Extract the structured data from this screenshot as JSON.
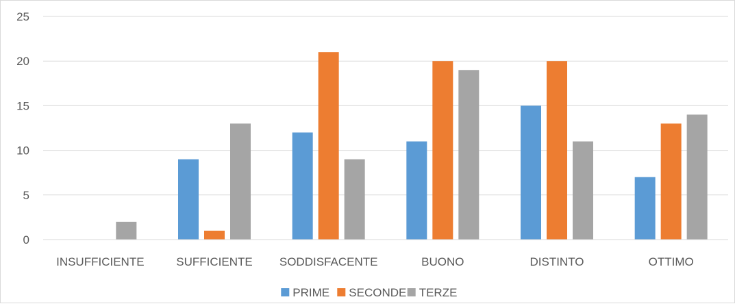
{
  "chart_data": {
    "type": "bar",
    "title": "",
    "xlabel": "",
    "ylabel": "",
    "ylim": [
      0,
      25
    ],
    "yticks": [
      0,
      5,
      10,
      15,
      20,
      25
    ],
    "grid": true,
    "legend_position": "bottom",
    "categories": [
      "INSUFFICIENTE",
      "SUFFICIENTE",
      "SODDISFACENTE",
      "BUONO",
      "DISTINTO",
      "OTTIMO"
    ],
    "series": [
      {
        "name": "PRIME",
        "color": "#5b9bd5",
        "values": [
          0,
          9,
          12,
          11,
          15,
          7
        ]
      },
      {
        "name": "SECONDE",
        "color": "#ed7d31",
        "values": [
          0,
          1,
          21,
          20,
          20,
          13
        ]
      },
      {
        "name": "TERZE",
        "color": "#a5a5a5",
        "values": [
          2,
          13,
          9,
          19,
          11,
          14
        ]
      }
    ]
  }
}
